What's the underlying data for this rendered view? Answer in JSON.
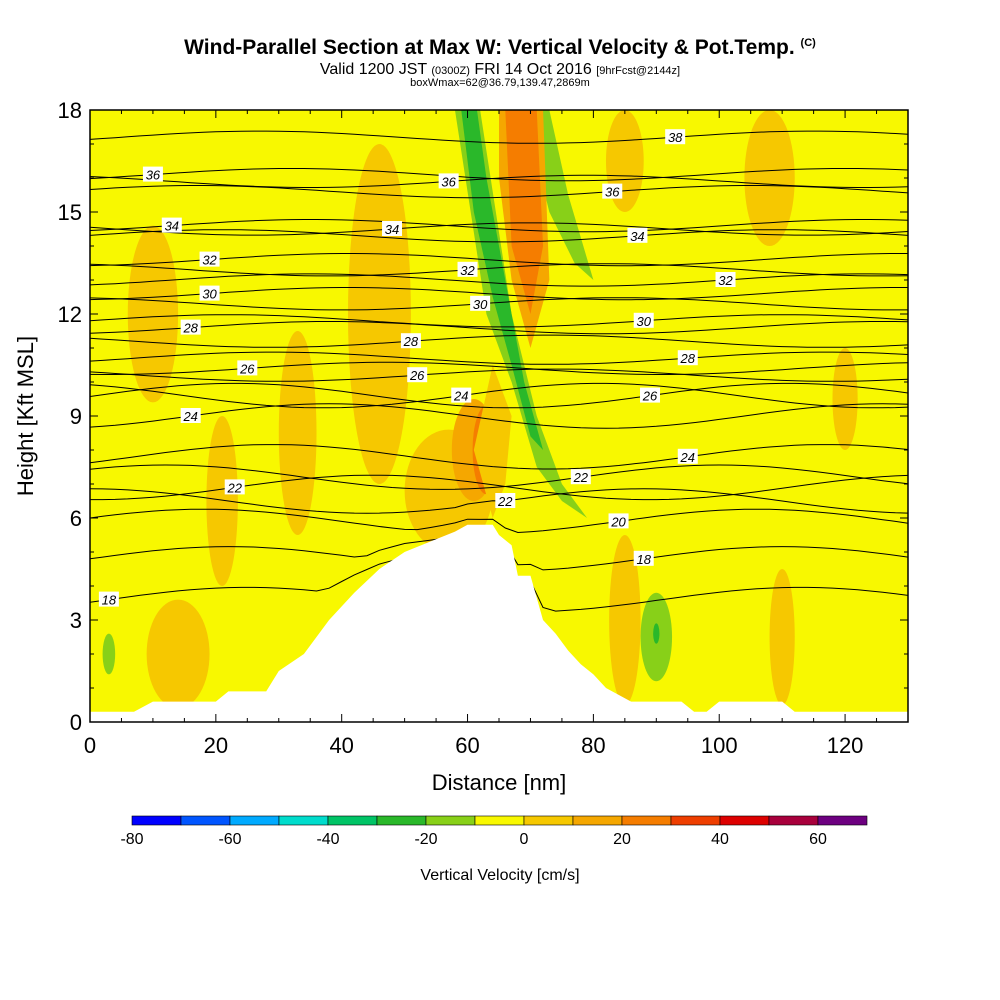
{
  "titles": {
    "main": "Wind-Parallel Section at Max W: Vertical Velocity & Pot.Temp.",
    "copyright": "(C)",
    "valid_prefix": "Valid 1200 JST",
    "valid_utc": "(0300Z)",
    "valid_date": "FRI 14 Oct 2016",
    "forecast": "[9hrFcst@2144z]",
    "boxwmax": "boxWmax=62@36.79,139.47,2869m"
  },
  "chart_data": {
    "type": "contour",
    "xlabel": "Distance [nm]",
    "ylabel": "Height [Kft MSL]",
    "xlim": [
      0,
      130
    ],
    "ylim": [
      0,
      18
    ],
    "xticks": [
      0,
      20,
      40,
      60,
      80,
      100,
      120
    ],
    "yticks": [
      0,
      3,
      6,
      9,
      12,
      15,
      18
    ],
    "terrain_kft": [
      [
        0,
        0.3
      ],
      [
        7,
        0.3
      ],
      [
        10,
        0.6
      ],
      [
        20,
        0.6
      ],
      [
        22,
        0.9
      ],
      [
        28,
        0.9
      ],
      [
        30,
        1.5
      ],
      [
        34,
        2.0
      ],
      [
        38,
        3.0
      ],
      [
        42,
        3.8
      ],
      [
        46,
        4.5
      ],
      [
        50,
        5.0
      ],
      [
        54,
        5.3
      ],
      [
        58,
        5.6
      ],
      [
        60,
        5.8
      ],
      [
        62,
        5.8
      ],
      [
        64,
        5.8
      ],
      [
        65,
        5.5
      ],
      [
        67,
        5.2
      ],
      [
        68,
        4.3
      ],
      [
        70,
        4.3
      ],
      [
        72,
        3.0
      ],
      [
        74,
        2.6
      ],
      [
        76,
        2.1
      ],
      [
        78,
        1.7
      ],
      [
        80,
        1.4
      ],
      [
        82,
        1.0
      ],
      [
        86,
        0.6
      ],
      [
        94,
        0.6
      ],
      [
        96,
        0.3
      ],
      [
        98,
        0.3
      ],
      [
        100,
        0.6
      ],
      [
        110,
        0.6
      ],
      [
        112,
        0.3
      ],
      [
        130,
        0.3
      ]
    ],
    "vertical_velocity_regions": [
      {
        "level_cms": 5,
        "color": "#f6c800",
        "cx": 10,
        "cy": 12,
        "rx": 4,
        "ry": 2.6
      },
      {
        "level_cms": 5,
        "color": "#f6c800",
        "cx": 46,
        "cy": 12,
        "rx": 5,
        "ry": 5.0
      },
      {
        "level_cms": 5,
        "color": "#f6c800",
        "cx": 57,
        "cy": 6.8,
        "rx": 7,
        "ry": 1.8
      },
      {
        "level_cms": 5,
        "color": "#f6c800",
        "cx": 21,
        "cy": 6.5,
        "rx": 2.5,
        "ry": 2.5
      },
      {
        "level_cms": 5,
        "color": "#f6c800",
        "cx": 33,
        "cy": 8.5,
        "rx": 3,
        "ry": 3.0
      },
      {
        "level_cms": 5,
        "color": "#f6c800",
        "cx": 85,
        "cy": 16.5,
        "rx": 3,
        "ry": 1.5
      },
      {
        "level_cms": 5,
        "color": "#f6c800",
        "cx": 108,
        "cy": 16.0,
        "rx": 4,
        "ry": 2.0
      },
      {
        "level_cms": 5,
        "color": "#f6c800",
        "cx": 120,
        "cy": 9.5,
        "rx": 2,
        "ry": 1.5
      },
      {
        "level_cms": 5,
        "color": "#f6c800",
        "cx": 14,
        "cy": 2.0,
        "rx": 5,
        "ry": 1.6
      },
      {
        "level_cms": 5,
        "color": "#f6c800",
        "cx": 85,
        "cy": 3.0,
        "rx": 2.5,
        "ry": 2.5
      },
      {
        "level_cms": 5,
        "color": "#f6c800",
        "cx": 110,
        "cy": 2.5,
        "rx": 2,
        "ry": 2.0
      },
      {
        "level_cms": 15,
        "color": "#f5a700",
        "cx": 61,
        "cy": 8.0,
        "rx": 3.5,
        "ry": 1.5
      },
      {
        "level_cms": 25,
        "color": "#f57d00",
        "cx": 63,
        "cy": 8.0,
        "rx": 2.2,
        "ry": 1.3
      },
      {
        "level_cms": 35,
        "color": "#ee3e00",
        "cx": 64,
        "cy": 7.8,
        "rx": 1.4,
        "ry": 1.1
      },
      {
        "level_cms": 45,
        "color": "#dd0000",
        "cx": 64.5,
        "cy": 7.8,
        "rx": 1.0,
        "ry": 0.8
      },
      {
        "level_cms": 55,
        "color": "#a8003c",
        "cx": 64.5,
        "cy": 7.9,
        "rx": 0.6,
        "ry": 0.5
      },
      {
        "level_cms": 65,
        "color": "#6d0080",
        "cx": 64.7,
        "cy": 8.0,
        "rx": 0.3,
        "ry": 0.4
      },
      {
        "level_cms": 35,
        "color": "#ee3e00",
        "cx": 69,
        "cy": 16.0,
        "rx": 1.8,
        "ry": 2.0
      },
      {
        "level_cms": 45,
        "color": "#dd0000",
        "cx": 69,
        "cy": 16.5,
        "rx": 1.0,
        "ry": 1.5
      },
      {
        "level_cms": -15,
        "color": "#88d018",
        "cx": 90,
        "cy": 2.5,
        "rx": 2.5,
        "ry": 1.3
      },
      {
        "level_cms": -25,
        "color": "#2ab82a",
        "cx": 90,
        "cy": 2.6,
        "rx": 0.5,
        "ry": 0.3
      },
      {
        "level_cms": -15,
        "color": "#88d018",
        "cx": 3,
        "cy": 2.0,
        "rx": 1.0,
        "ry": 0.6
      }
    ],
    "vertical_velocity_bands": [
      {
        "level_cms": -15,
        "color": "#88d018",
        "pts": [
          [
            58,
            18
          ],
          [
            62,
            18
          ],
          [
            67,
            12
          ],
          [
            71,
            9
          ],
          [
            75,
            7
          ],
          [
            79,
            6
          ],
          [
            75,
            6.5
          ],
          [
            71,
            7.5
          ],
          [
            67,
            10
          ],
          [
            63,
            12
          ]
        ]
      },
      {
        "level_cms": -25,
        "color": "#2ab82a",
        "pts": [
          [
            59,
            18
          ],
          [
            61.5,
            18
          ],
          [
            63,
            16
          ],
          [
            66,
            13
          ],
          [
            69,
            10
          ],
          [
            72,
            8
          ],
          [
            70,
            8.4
          ],
          [
            67,
            10.5
          ],
          [
            64,
            12.5
          ],
          [
            61,
            15
          ]
        ]
      },
      {
        "level_cms": -15,
        "color": "#88d018",
        "pts": [
          [
            70,
            18
          ],
          [
            73,
            18
          ],
          [
            76,
            15.5
          ],
          [
            80,
            13
          ],
          [
            77,
            13.5
          ],
          [
            73,
            15
          ],
          [
            71,
            16.5
          ]
        ]
      },
      {
        "level_cms": 15,
        "color": "#f5a700",
        "pts": [
          [
            65,
            18
          ],
          [
            72,
            18
          ],
          [
            73,
            13
          ],
          [
            70,
            11
          ],
          [
            67,
            13
          ],
          [
            65,
            16
          ]
        ]
      },
      {
        "level_cms": 25,
        "color": "#f57d00",
        "pts": [
          [
            66,
            18
          ],
          [
            71,
            18
          ],
          [
            72,
            14
          ],
          [
            70,
            12
          ],
          [
            67,
            14
          ]
        ]
      },
      {
        "level_cms": 5,
        "color": "#f6c800",
        "pts": [
          [
            61,
            8
          ],
          [
            64,
            10.5
          ],
          [
            67,
            9
          ],
          [
            66,
            7
          ],
          [
            64,
            6
          ]
        ]
      }
    ],
    "potential_temperature": {
      "field": "Pot.Temp.",
      "labels": [
        {
          "value": "38",
          "x": 93,
          "y": 17.2
        },
        {
          "value": "36",
          "x": 10,
          "y": 16.1
        },
        {
          "value": "36",
          "x": 57,
          "y": 15.9
        },
        {
          "value": "36",
          "x": 83,
          "y": 15.6
        },
        {
          "value": "34",
          "x": 13,
          "y": 14.6
        },
        {
          "value": "34",
          "x": 48,
          "y": 14.5
        },
        {
          "value": "34",
          "x": 87,
          "y": 14.3
        },
        {
          "value": "32",
          "x": 19,
          "y": 13.6
        },
        {
          "value": "32",
          "x": 60,
          "y": 13.3
        },
        {
          "value": "32",
          "x": 101,
          "y": 13.0
        },
        {
          "value": "30",
          "x": 19,
          "y": 12.6
        },
        {
          "value": "30",
          "x": 62,
          "y": 12.3
        },
        {
          "value": "30",
          "x": 88,
          "y": 11.8
        },
        {
          "value": "28",
          "x": 16,
          "y": 11.6
        },
        {
          "value": "28",
          "x": 51,
          "y": 11.2
        },
        {
          "value": "28",
          "x": 95,
          "y": 10.7
        },
        {
          "value": "26",
          "x": 25,
          "y": 10.4
        },
        {
          "value": "26",
          "x": 52,
          "y": 10.2
        },
        {
          "value": "26",
          "x": 89,
          "y": 9.6
        },
        {
          "value": "24",
          "x": 16,
          "y": 9.0
        },
        {
          "value": "24",
          "x": 59,
          "y": 9.6
        },
        {
          "value": "24",
          "x": 95,
          "y": 7.8
        },
        {
          "value": "22",
          "x": 23,
          "y": 6.9
        },
        {
          "value": "22",
          "x": 66,
          "y": 6.5
        },
        {
          "value": "22",
          "x": 78,
          "y": 7.2
        },
        {
          "value": "20",
          "x": 84,
          "y": 5.9
        },
        {
          "value": "18",
          "x": 3,
          "y": 3.6
        },
        {
          "value": "18",
          "x": 88,
          "y": 4.8
        }
      ]
    },
    "colorbar": {
      "label": "Vertical Velocity [cm/s]",
      "ticks": [
        "-80",
        "-60",
        "-40",
        "-20",
        "0",
        "20",
        "40",
        "60"
      ],
      "boundaries": [
        -80,
        -70,
        -60,
        -50,
        -40,
        -30,
        -20,
        -10,
        0,
        10,
        20,
        30,
        40,
        50,
        60,
        70
      ],
      "colors": [
        "#0000ff",
        "#0055ff",
        "#00aaff",
        "#00dccc",
        "#00c466",
        "#2ab82a",
        "#88d018",
        "#f8f800",
        "#f6c800",
        "#f5a700",
        "#f57d00",
        "#ee3e00",
        "#dd0000",
        "#a8003c",
        "#6d0080"
      ]
    }
  }
}
